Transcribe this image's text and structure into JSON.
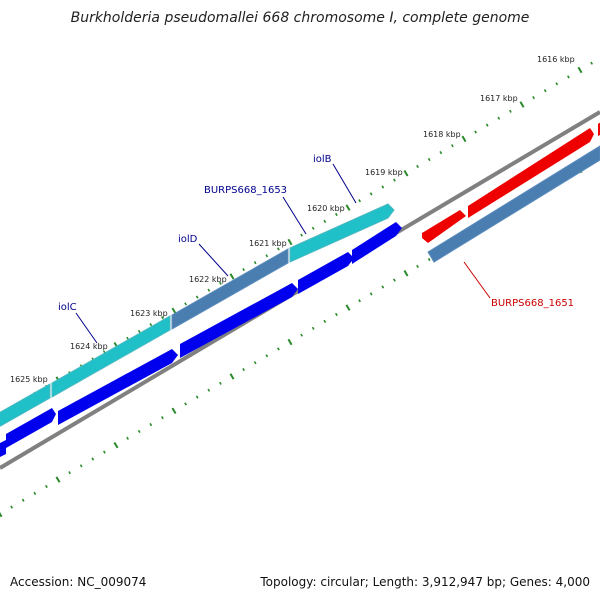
{
  "title": "Burkholderia pseudomallei 668 chromosome I, complete genome",
  "footer": {
    "accession": "Accession: NC_009074",
    "topology": "Topology: circular; Length: 3,912,947 bp; Genes: 4,000"
  },
  "ruler": {
    "labels": [
      "1616 kbp",
      "1617 kbp",
      "1618 kbp",
      "1619 kbp",
      "1620 kbp",
      "1621 kbp",
      "1622 kbp",
      "1623 kbp",
      "1624 kbp",
      "1625 kbp"
    ]
  },
  "genes": [
    {
      "label": "iolB",
      "color": "#00008b"
    },
    {
      "label": "BURPS668_1653",
      "color": "#00008b"
    },
    {
      "label": "iolD",
      "color": "#00008b"
    },
    {
      "label": "iolC",
      "color": "#00008b"
    },
    {
      "label": "BURPS668_1651",
      "color": "#cc0000"
    }
  ],
  "colors": {
    "forward_cds": "#0000ee",
    "forward_feature": "#20c0c8",
    "forward_feature_alt": "#4a7db0",
    "reverse_cds": "#ee0000",
    "reverse_feature": "#4a7db0",
    "backbone": "#808080",
    "ticks": "#2a8a2a"
  }
}
